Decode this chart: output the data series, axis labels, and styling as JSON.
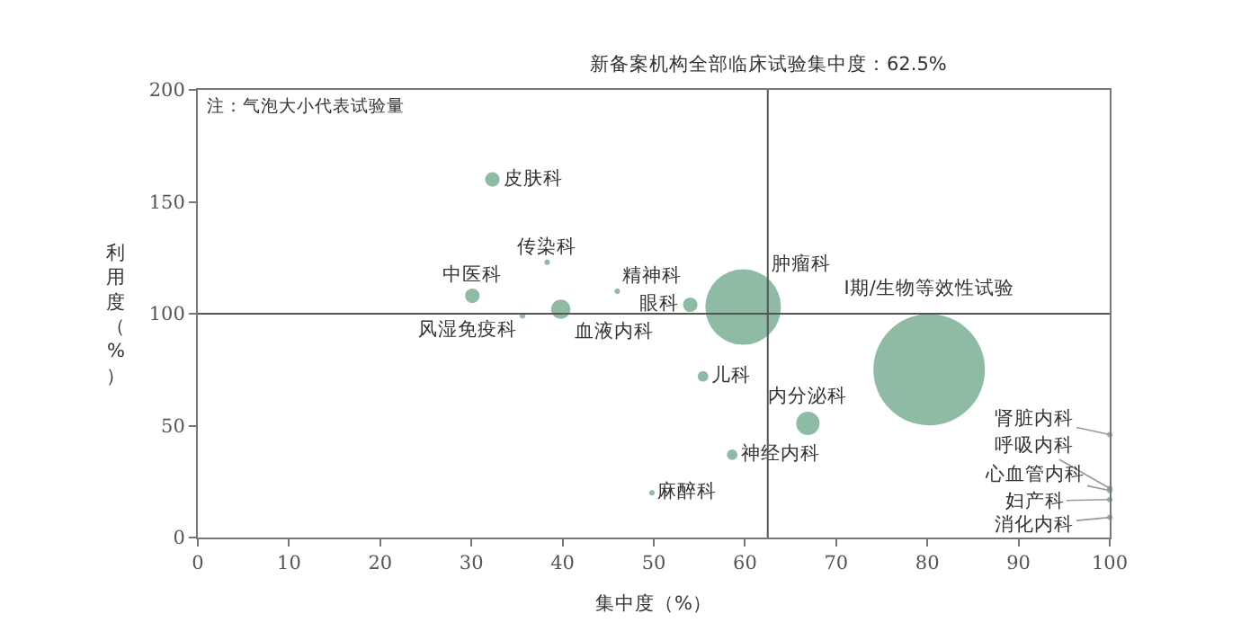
{
  "chart_data": {
    "type": "bubble",
    "series": [
      {
        "name": "皮肤科",
        "x": [
          32.3
        ],
        "values": [
          160
        ],
        "sizes": [
          0.017
        ]
      },
      {
        "name": "传染科",
        "x": [
          38.3
        ],
        "values": [
          123
        ],
        "sizes": [
          0.0023
        ]
      },
      {
        "name": "中医科",
        "x": [
          30.1
        ],
        "values": [
          108
        ],
        "sizes": [
          0.017
        ]
      },
      {
        "name": "精神科",
        "x": [
          46
        ],
        "values": [
          110
        ],
        "sizes": [
          0.001
        ]
      },
      {
        "name": "风湿免疫科",
        "x": [
          35.6
        ],
        "values": [
          99
        ],
        "sizes": [
          0.0023
        ]
      },
      {
        "name": "血液内科",
        "x": [
          39.8
        ],
        "values": [
          102
        ],
        "sizes": [
          0.03
        ]
      },
      {
        "name": "眼科",
        "x": [
          54
        ],
        "values": [
          104
        ],
        "sizes": [
          0.017
        ]
      },
      {
        "name": "肿瘤科",
        "x": [
          59.8
        ],
        "values": [
          103
        ],
        "sizes": [
          0.46
        ]
      },
      {
        "name": "I期/生物等效性试验",
        "x": [
          80.2
        ],
        "values": [
          75
        ],
        "sizes": [
          1
        ]
      },
      {
        "name": "儿科",
        "x": [
          55.4
        ],
        "values": [
          72
        ],
        "sizes": [
          0.009
        ]
      },
      {
        "name": "内分泌科",
        "x": [
          66.9
        ],
        "values": [
          51
        ],
        "sizes": [
          0.044
        ]
      },
      {
        "name": "神经内科",
        "x": [
          58.6
        ],
        "values": [
          37
        ],
        "sizes": [
          0.009
        ]
      },
      {
        "name": "麻醉科",
        "x": [
          49.8
        ],
        "values": [
          20
        ],
        "sizes": [
          0.001
        ]
      },
      {
        "name": "肾脏内科",
        "x": [
          100
        ],
        "values": [
          46
        ],
        "sizes": [
          0.002
        ]
      },
      {
        "name": "呼吸内科",
        "x": [
          100
        ],
        "values": [
          22
        ],
        "sizes": [
          0.002
        ]
      },
      {
        "name": "心血管内科",
        "x": [
          100
        ],
        "values": [
          21
        ],
        "sizes": [
          0.002
        ]
      },
      {
        "name": "妇产科",
        "x": [
          100
        ],
        "values": [
          17
        ],
        "sizes": [
          0.002
        ]
      },
      {
        "name": "消化内科",
        "x": [
          100
        ],
        "values": [
          9
        ],
        "sizes": [
          0.002
        ]
      }
    ],
    "color": "#5f9e7f",
    "xlabel": "集中度（%）",
    "ylabel": "利用度（%）",
    "xlim": [
      0,
      100
    ],
    "ylim": [
      0,
      200
    ],
    "xticks": [
      0,
      10,
      20,
      30,
      40,
      50,
      60,
      70,
      80,
      90,
      100
    ],
    "yticks": [
      0,
      50,
      100,
      150,
      200
    ],
    "ref_lines": [
      {
        "axis": "x",
        "value": 62.5,
        "label": "新备案机构全部临床试验集中度：62.5%"
      },
      {
        "axis": "y",
        "value": 100,
        "label": null
      }
    ],
    "annotations": [
      "注：气泡大小代表试验量"
    ],
    "legend": false
  }
}
